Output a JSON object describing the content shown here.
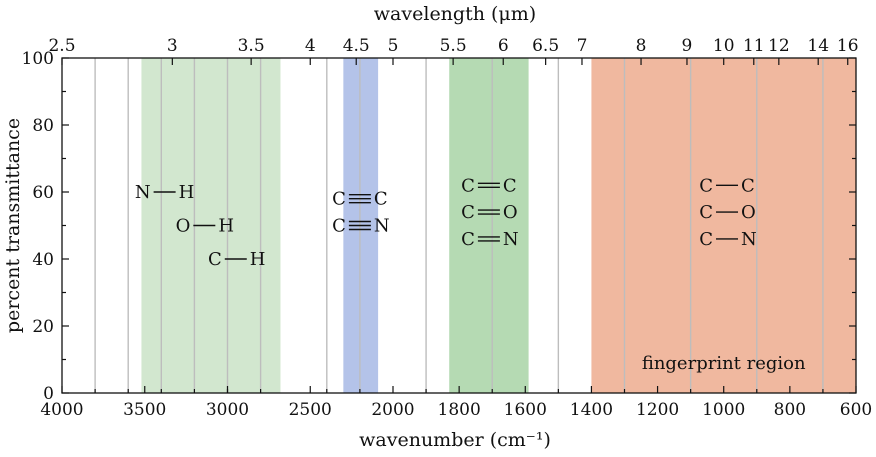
{
  "chart_data": {
    "type": "band_chart",
    "xlabel": "wavenumber (cm⁻¹)",
    "top_xlabel": "wavelength (μm)",
    "ylabel": "percent transmittance",
    "xlim": [
      4000,
      600
    ],
    "ylim": [
      0,
      100
    ],
    "x_ticks": [
      4000,
      3500,
      3000,
      2500,
      2000,
      1800,
      1600,
      1400,
      1200,
      1000,
      800,
      600
    ],
    "y_ticks": [
      0,
      20,
      40,
      60,
      80,
      100
    ],
    "top_ticks": [
      {
        "label": "2.5",
        "value": 2.5
      },
      {
        "label": "3",
        "value": 3
      },
      {
        "label": "3.5",
        "value": 3.5
      },
      {
        "label": "4",
        "value": 4
      },
      {
        "label": "4.5",
        "value": 4.5
      },
      {
        "label": "5",
        "value": 5
      },
      {
        "label": "5.5",
        "value": 5.5
      },
      {
        "label": "6",
        "value": 6
      },
      {
        "label": "6.5",
        "value": 6.5
      },
      {
        "label": "7",
        "value": 7
      },
      {
        "label": "8",
        "value": 8
      },
      {
        "label": "9",
        "value": 9
      },
      {
        "label": "10",
        "value": 10
      },
      {
        "label": "11",
        "value": 11
      },
      {
        "label": "12",
        "value": 12
      },
      {
        "label": "14",
        "value": 14
      },
      {
        "label": "16",
        "value": 16
      }
    ],
    "grid_wavenumbers": [
      3800,
      3600,
      3400,
      3200,
      3000,
      2800,
      2400,
      2200,
      1900,
      1700,
      1500,
      1300,
      1100,
      900,
      700
    ],
    "bands": [
      {
        "name": "single-bond-h",
        "from": 3520,
        "to": 2680,
        "color": "#d2e7cf",
        "labels": [
          {
            "left": "N",
            "bond": "single",
            "right": "H",
            "x": 3380,
            "y": 60
          },
          {
            "left": "O",
            "bond": "single",
            "right": "H",
            "x": 3140,
            "y": 50
          },
          {
            "left": "C",
            "bond": "single",
            "right": "H",
            "x": 2950,
            "y": 40
          }
        ]
      },
      {
        "name": "triple-bond",
        "from": 2300,
        "to": 2090,
        "color": "#b4c3e9",
        "labels": [
          {
            "left": "C",
            "bond": "triple",
            "right": "C",
            "x": 2200,
            "y": 58
          },
          {
            "left": "C",
            "bond": "triple",
            "right": "N",
            "x": 2200,
            "y": 50
          }
        ]
      },
      {
        "name": "double-bond",
        "from": 1830,
        "to": 1590,
        "color": "#b5dab3",
        "labels": [
          {
            "left": "C",
            "bond": "double",
            "right": "C",
            "x": 1710,
            "y": 62
          },
          {
            "left": "C",
            "bond": "double",
            "right": "O",
            "x": 1710,
            "y": 54
          },
          {
            "left": "C",
            "bond": "double",
            "right": "N",
            "x": 1710,
            "y": 46
          }
        ]
      },
      {
        "name": "fingerprint",
        "from": 1400,
        "to": 600,
        "color": "#f0b89f",
        "labels": [
          {
            "left": "C",
            "bond": "single",
            "right": "C",
            "x": 990,
            "y": 62
          },
          {
            "left": "C",
            "bond": "single",
            "right": "O",
            "x": 990,
            "y": 54
          },
          {
            "left": "C",
            "bond": "single",
            "right": "N",
            "x": 990,
            "y": 46
          }
        ]
      }
    ],
    "annotations": [
      {
        "text": "fingerprint region",
        "x": 1000,
        "y": 9
      }
    ],
    "colors": {
      "grid": "#bdbdbd",
      "frame": "#111111"
    }
  }
}
